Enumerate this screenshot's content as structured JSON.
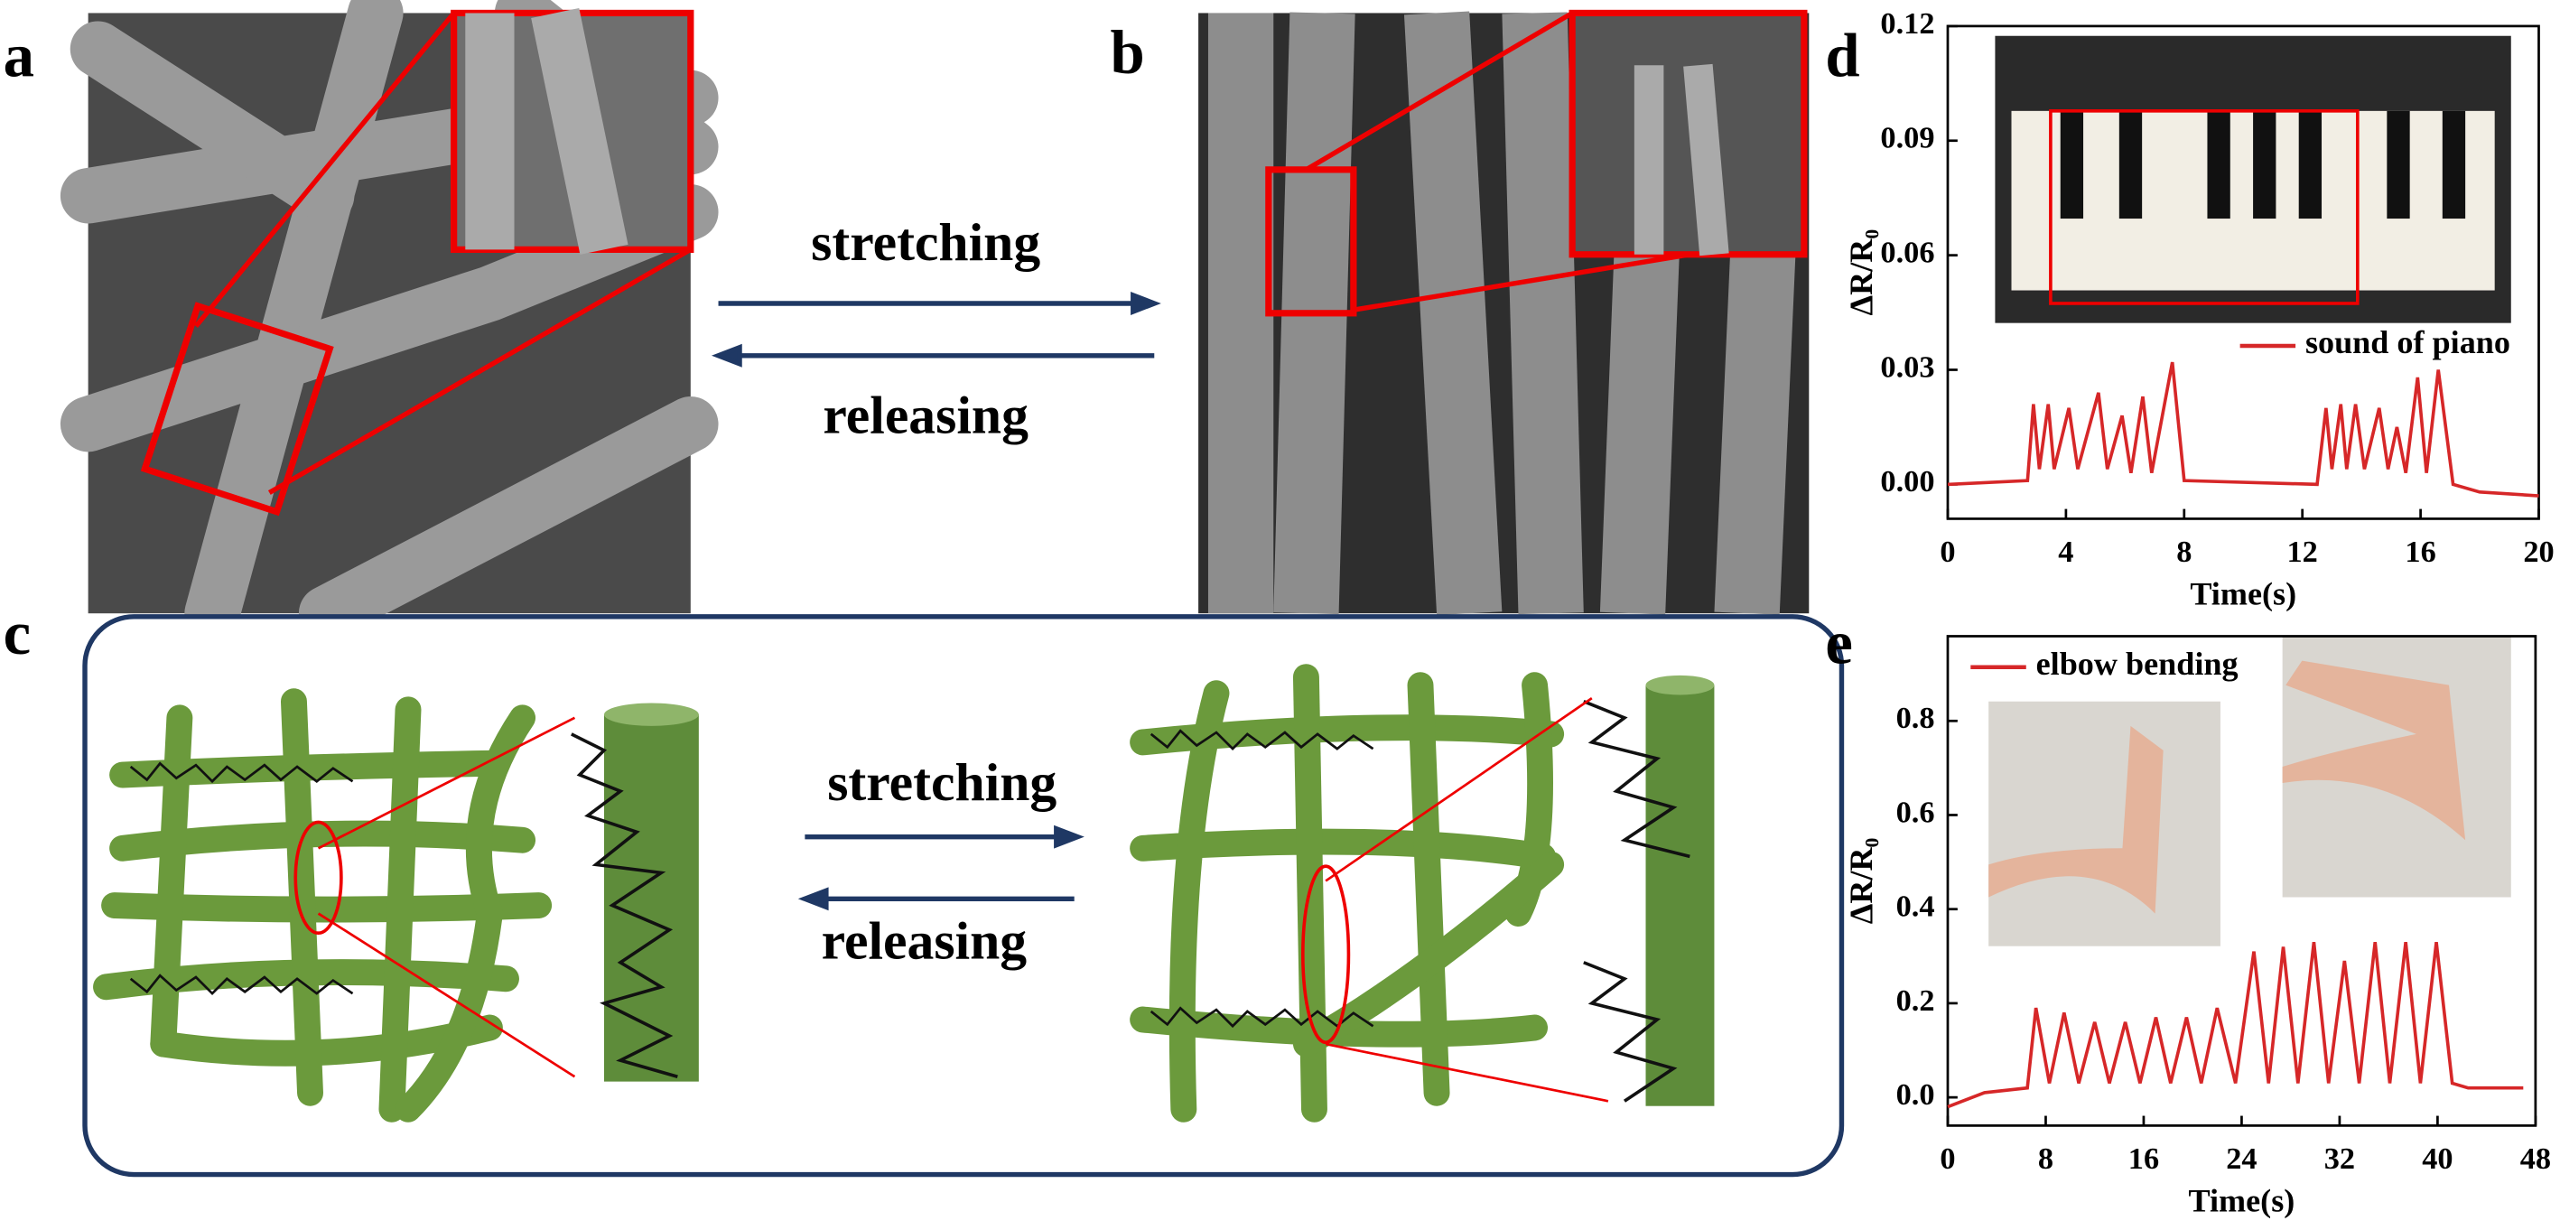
{
  "panel_labels": [
    "a",
    "b",
    "c",
    "d",
    "e"
  ],
  "sem_arrows": {
    "top": "stretching",
    "bottom": "releasing"
  },
  "schematic_arrows": {
    "top": "stretching",
    "bottom": "releasing"
  },
  "chart_data": [
    {
      "type": "line",
      "xlabel": "Time(s)",
      "ylabel": "ΔR/R₀",
      "x": [
        0,
        2.7,
        2.9,
        3.1,
        3.4,
        3.6,
        4.1,
        4.4,
        5.1,
        5.4,
        5.9,
        6.2,
        6.6,
        6.9,
        7.6,
        8.0,
        12.5,
        12.8,
        13.0,
        13.3,
        13.5,
        13.8,
        14.1,
        14.6,
        14.9,
        15.2,
        15.5,
        15.9,
        16.2,
        16.6,
        17.1,
        18.0,
        20
      ],
      "series": [
        {
          "name": "sound of piano",
          "color": "#d62728",
          "values": [
            0.0,
            0.001,
            0.021,
            0.004,
            0.021,
            0.004,
            0.02,
            0.004,
            0.024,
            0.004,
            0.018,
            0.003,
            0.023,
            0.003,
            0.032,
            0.001,
            0.0,
            0.02,
            0.004,
            0.021,
            0.004,
            0.021,
            0.004,
            0.02,
            0.004,
            0.015,
            0.003,
            0.028,
            0.003,
            0.03,
            0.0,
            -0.002,
            -0.003
          ]
        }
      ],
      "xlim": [
        0,
        20
      ],
      "xticks": [
        0,
        4,
        8,
        12,
        16,
        20
      ],
      "ylim": [
        -0.009,
        0.12
      ],
      "yticks": [
        {
          "value": 0,
          "label": "0.00"
        },
        {
          "value": 0.03,
          "label": "0.03"
        },
        {
          "value": 0.06,
          "label": "0.06"
        },
        {
          "value": 0.09,
          "label": "0.09"
        },
        {
          "value": 0.12,
          "label": "0.12"
        }
      ]
    },
    {
      "type": "line",
      "xlabel": "Time(s)",
      "ylabel": "ΔR/R₀",
      "x": [
        0,
        3,
        6.5,
        7.2,
        8.3,
        9.5,
        10.7,
        12,
        13.2,
        14.5,
        15.7,
        17,
        18.2,
        19.5,
        20.7,
        22,
        23.5,
        25,
        26.2,
        27.4,
        28.6,
        29.9,
        31.1,
        32.4,
        33.6,
        34.9,
        36.1,
        37.4,
        38.6,
        39.9,
        41.2,
        42.5,
        47
      ],
      "series": [
        {
          "name": "elbow bending",
          "color": "#d62728",
          "values": [
            -0.02,
            0.01,
            0.02,
            0.19,
            0.03,
            0.18,
            0.03,
            0.16,
            0.03,
            0.16,
            0.03,
            0.17,
            0.03,
            0.17,
            0.03,
            0.19,
            0.03,
            0.31,
            0.03,
            0.32,
            0.03,
            0.33,
            0.03,
            0.29,
            0.03,
            0.33,
            0.03,
            0.33,
            0.03,
            0.33,
            0.03,
            0.02,
            0.02
          ]
        }
      ],
      "xlim": [
        0,
        48
      ],
      "xticks": [
        0,
        8,
        16,
        24,
        32,
        40,
        48
      ],
      "ylim": [
        -0.06,
        0.98
      ],
      "yticks": [
        {
          "value": 0,
          "label": "0.0"
        },
        0.2,
        0.4,
        0.6,
        0.8
      ]
    }
  ]
}
